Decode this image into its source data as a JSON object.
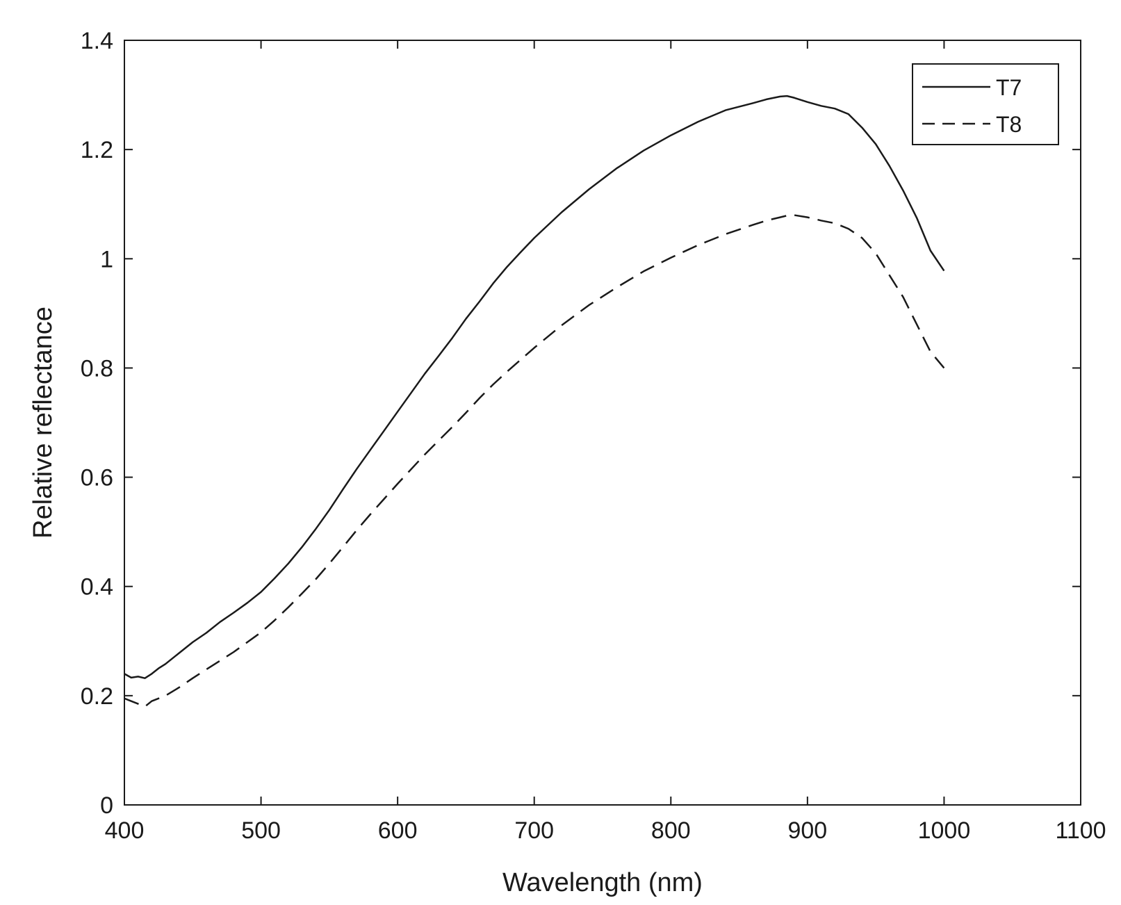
{
  "chart_data": {
    "type": "line",
    "title": "",
    "xlabel": "Wavelength (nm)",
    "ylabel": "Relative reflectance",
    "xlim": [
      400,
      1100
    ],
    "ylim": [
      0,
      1.4
    ],
    "xticks": [
      400,
      500,
      600,
      700,
      800,
      900,
      1000,
      1100
    ],
    "xtick_labels": [
      "400",
      "500",
      "600",
      "700",
      "800",
      "900",
      "1000",
      "1100"
    ],
    "yticks": [
      0,
      0.2,
      0.4,
      0.6,
      0.8,
      1.0,
      1.2,
      1.4
    ],
    "ytick_labels": [
      "0",
      "0.2",
      "0.4",
      "0.6",
      "0.8",
      "1",
      "1.2",
      "1.4"
    ],
    "grid": false,
    "legend_position": "top-right",
    "series": [
      {
        "name": "T7",
        "style": "solid",
        "color": "#1a1a1a",
        "x": [
          400,
          405,
          410,
          415,
          420,
          425,
          430,
          440,
          450,
          460,
          470,
          480,
          490,
          500,
          510,
          520,
          530,
          540,
          550,
          560,
          570,
          580,
          590,
          600,
          610,
          620,
          630,
          640,
          650,
          660,
          670,
          680,
          690,
          700,
          720,
          740,
          760,
          780,
          800,
          820,
          840,
          860,
          870,
          880,
          885,
          890,
          900,
          910,
          920,
          930,
          940,
          950,
          960,
          970,
          980,
          990,
          1000
        ],
        "y": [
          0.24,
          0.233,
          0.235,
          0.232,
          0.24,
          0.25,
          0.258,
          0.278,
          0.298,
          0.315,
          0.335,
          0.352,
          0.37,
          0.39,
          0.415,
          0.442,
          0.472,
          0.505,
          0.54,
          0.578,
          0.615,
          0.65,
          0.685,
          0.72,
          0.755,
          0.79,
          0.822,
          0.855,
          0.89,
          0.922,
          0.955,
          0.985,
          1.012,
          1.038,
          1.085,
          1.127,
          1.165,
          1.198,
          1.226,
          1.251,
          1.272,
          1.285,
          1.292,
          1.297,
          1.298,
          1.295,
          1.287,
          1.28,
          1.275,
          1.265,
          1.24,
          1.21,
          1.17,
          1.125,
          1.075,
          1.015,
          0.978
        ]
      },
      {
        "name": "T8",
        "style": "dashed",
        "color": "#1a1a1a",
        "x": [
          400,
          405,
          410,
          415,
          420,
          430,
          440,
          450,
          460,
          470,
          480,
          490,
          500,
          510,
          520,
          530,
          540,
          550,
          560,
          570,
          580,
          590,
          600,
          610,
          620,
          630,
          640,
          650,
          660,
          670,
          680,
          690,
          700,
          720,
          740,
          760,
          780,
          800,
          820,
          840,
          860,
          870,
          880,
          885,
          890,
          900,
          910,
          920,
          930,
          940,
          950,
          960,
          970,
          980,
          990,
          1000
        ],
        "y": [
          0.195,
          0.19,
          0.185,
          0.18,
          0.19,
          0.2,
          0.215,
          0.232,
          0.248,
          0.264,
          0.28,
          0.298,
          0.316,
          0.338,
          0.362,
          0.387,
          0.413,
          0.442,
          0.472,
          0.503,
          0.532,
          0.56,
          0.588,
          0.615,
          0.642,
          0.667,
          0.692,
          0.718,
          0.745,
          0.77,
          0.793,
          0.815,
          0.837,
          0.878,
          0.915,
          0.947,
          0.977,
          1.002,
          1.025,
          1.045,
          1.062,
          1.07,
          1.076,
          1.079,
          1.08,
          1.076,
          1.07,
          1.065,
          1.055,
          1.038,
          1.01,
          0.97,
          0.93,
          0.88,
          0.83,
          0.8
        ]
      }
    ]
  }
}
